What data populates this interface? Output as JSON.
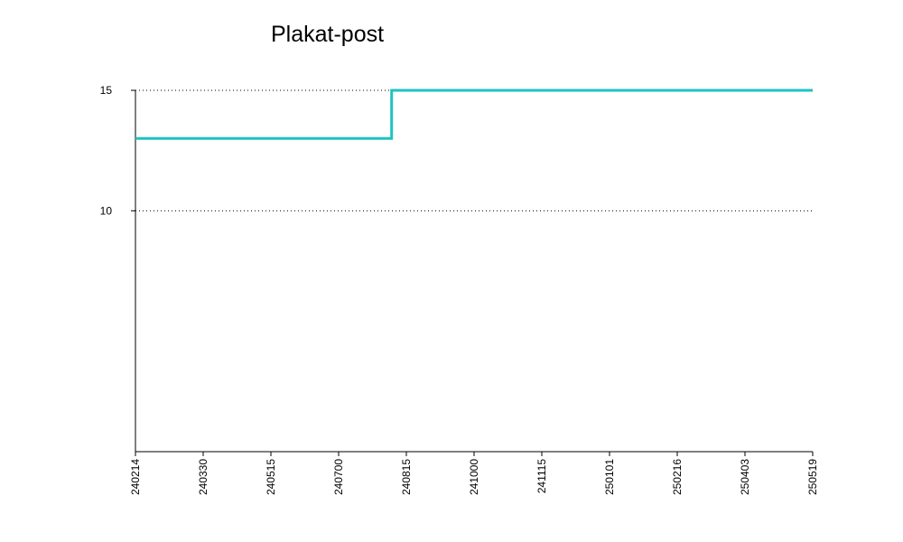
{
  "chart_data": {
    "type": "line",
    "title": "Plakat-post",
    "xlabel": "",
    "ylabel": "",
    "x_ticks": [
      "240214",
      "240330",
      "240515",
      "240700",
      "240815",
      "241000",
      "241115",
      "250101",
      "250216",
      "250403",
      "250519"
    ],
    "y_ticks": [
      10,
      15
    ],
    "ylim": [
      0,
      15
    ],
    "grid": true,
    "series": [
      {
        "color": "#1fc2c2",
        "step": true,
        "x": [
          "240214",
          "240806",
          "250519"
        ],
        "values": [
          13,
          15,
          15
        ]
      }
    ]
  }
}
